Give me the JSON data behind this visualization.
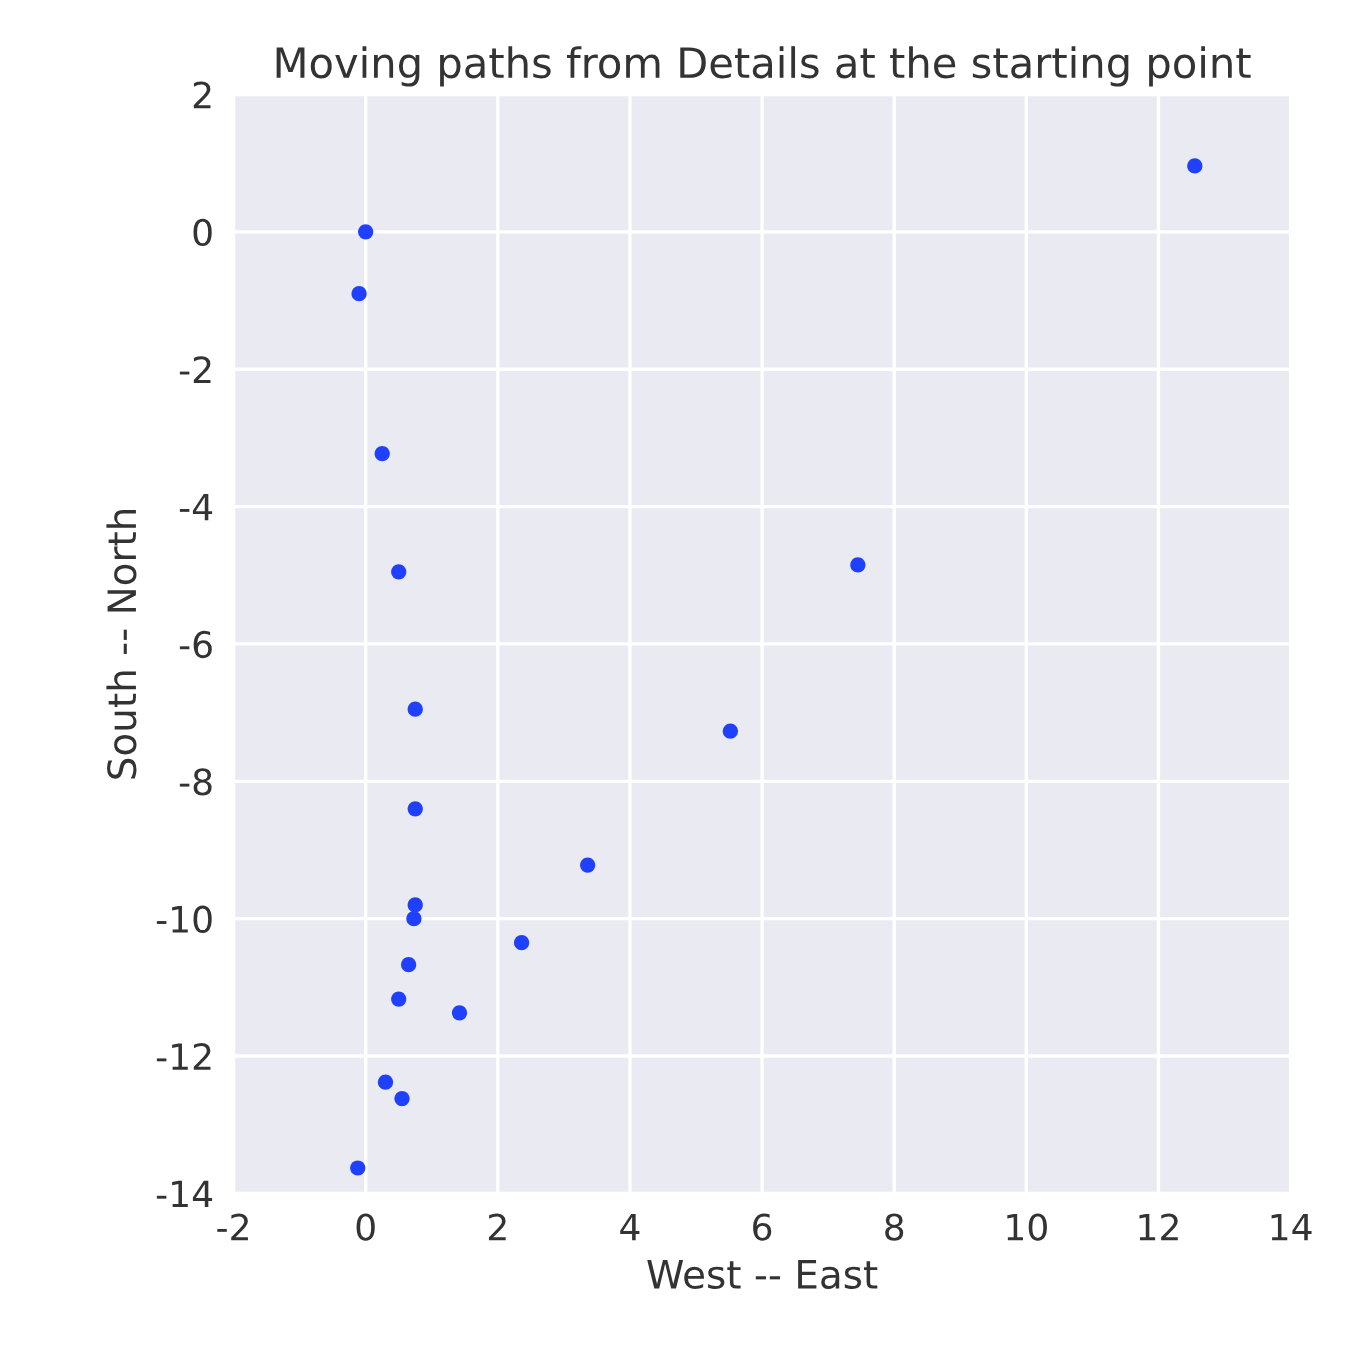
{
  "chart_data": {
    "type": "scatter",
    "title": "Moving paths from Details at the starting point",
    "xlabel": "West -- East",
    "ylabel": "South -- North",
    "x": [
      0,
      -0.1,
      0.25,
      0.5,
      0.75,
      0.75,
      0.75,
      0.73,
      0.65,
      0.5,
      1.42,
      0.3,
      0.55,
      -0.12,
      2.36,
      3.36,
      5.52,
      7.45,
      12.55
    ],
    "series": [
      {
        "color": "#2040ff",
        "values": [
          0,
          -0.9,
          -3.23,
          -4.95,
          -6.95,
          -8.4,
          -9.8,
          -10.0,
          -10.67,
          -11.17,
          -11.37,
          -12.38,
          -12.62,
          -13.63,
          -10.35,
          -9.22,
          -7.27,
          -4.85,
          0.96
        ]
      }
    ],
    "xlim": [
      -2,
      14
    ],
    "xticks": [
      -2,
      0,
      2,
      4,
      6,
      8,
      10,
      12,
      14
    ],
    "ylim": [
      -14,
      2
    ],
    "yticks": [
      -14,
      -12,
      -10,
      -8,
      -6,
      -4,
      -2,
      0,
      2
    ],
    "grid": true,
    "marker": "circle"
  }
}
